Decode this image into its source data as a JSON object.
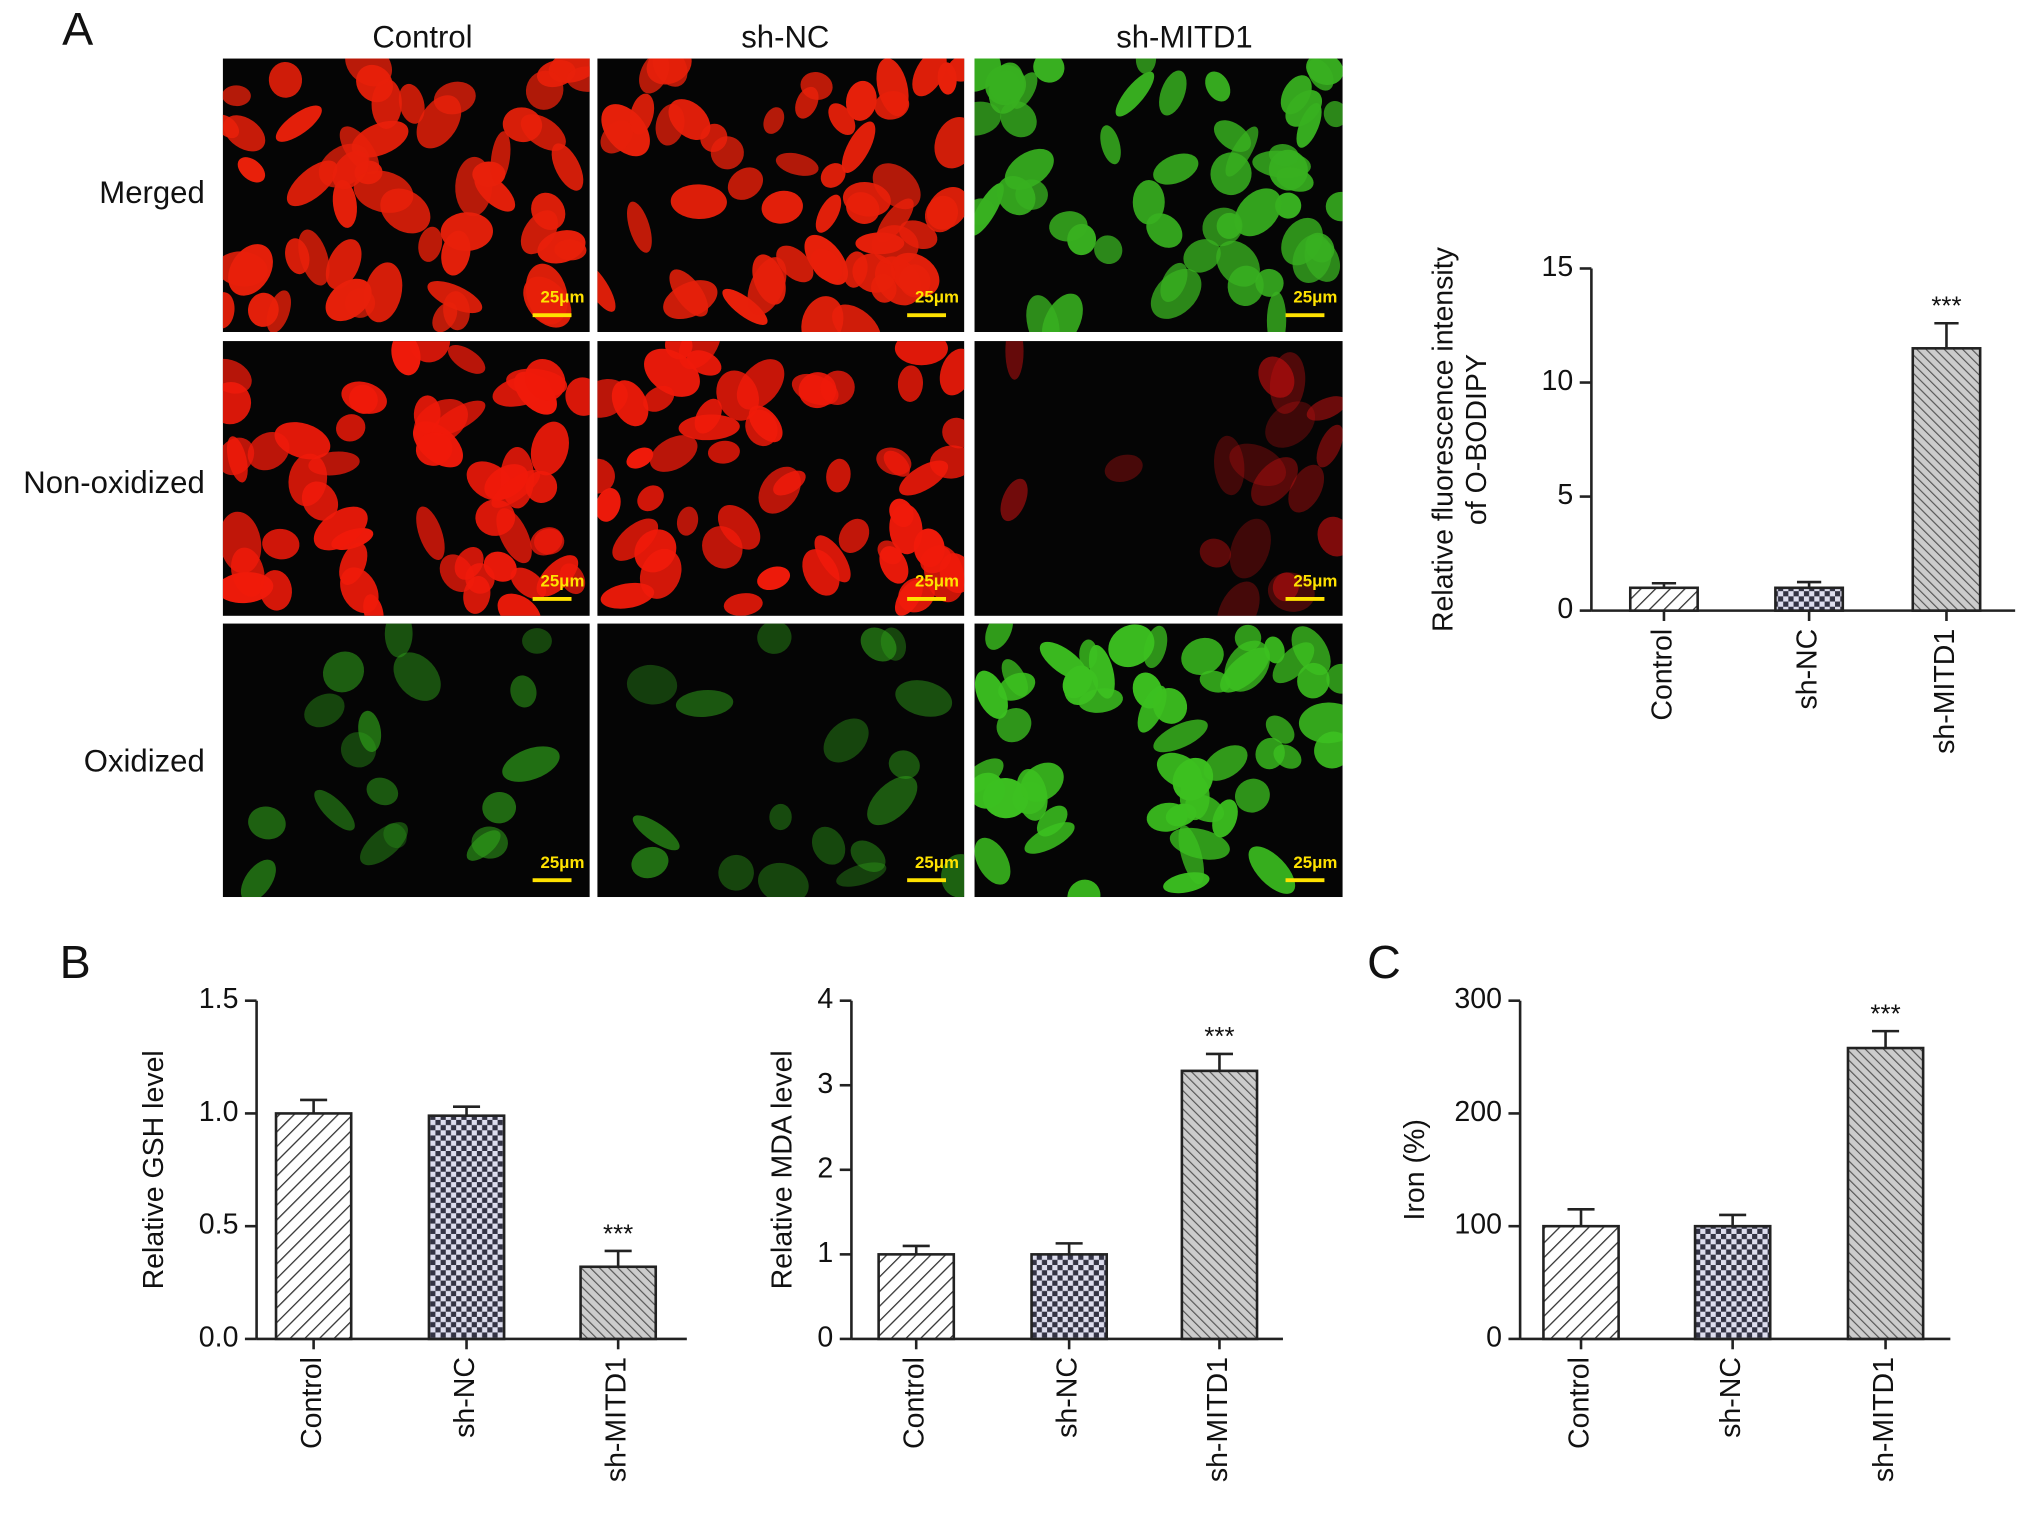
{
  "panel_labels": [
    "A",
    "B",
    "C"
  ],
  "micrograph": {
    "columns": [
      "Control",
      "sh-NC",
      "sh-MITD1"
    ],
    "rows": [
      "Merged",
      "Non-oxidized",
      "Oxidized"
    ],
    "scale_bar": "25μm"
  },
  "chart_data": [
    {
      "type": "bar",
      "ylabel": [
        "Relative fluorescence intensity",
        "of O-BODIPY"
      ],
      "categories": [
        "Control",
        "sh-NC",
        "sh-MITD1"
      ],
      "values": [
        1.0,
        1.0,
        11.5
      ],
      "errors": [
        0.2,
        0.25,
        1.1
      ],
      "patterns": [
        "backslash",
        "checker",
        "slash"
      ],
      "value_annotations": [
        null,
        null,
        "***"
      ],
      "ylim": [
        0,
        15
      ],
      "yticks": [
        0,
        5,
        10,
        15
      ]
    },
    {
      "type": "bar",
      "ylabel": [
        "Relative GSH level"
      ],
      "categories": [
        "Control",
        "sh-NC",
        "sh-MITD1"
      ],
      "values": [
        1.0,
        0.99,
        0.32
      ],
      "errors": [
        0.06,
        0.04,
        0.07
      ],
      "patterns": [
        "backslash",
        "checker",
        "slash"
      ],
      "value_annotations": [
        null,
        null,
        "***"
      ],
      "ylim": [
        0,
        1.5
      ],
      "yticks": [
        {
          "value": 0,
          "label": "0.0"
        },
        0.5,
        {
          "value": 1,
          "label": "1.0"
        },
        1.5
      ]
    },
    {
      "type": "bar",
      "ylabel": [
        "Relative MDA level"
      ],
      "categories": [
        "Control",
        "sh-NC",
        "sh-MITD1"
      ],
      "values": [
        1.0,
        1.0,
        3.17
      ],
      "errors": [
        0.1,
        0.13,
        0.2
      ],
      "patterns": [
        "backslash",
        "checker",
        "slash"
      ],
      "value_annotations": [
        null,
        null,
        "***"
      ],
      "ylim": [
        0,
        4
      ],
      "yticks": [
        0,
        1,
        2,
        3,
        4
      ]
    },
    {
      "type": "bar",
      "ylabel": [
        "Iron (%)"
      ],
      "categories": [
        "Control",
        "sh-NC",
        "sh-MITD1"
      ],
      "values": [
        100,
        100,
        258
      ],
      "errors": [
        15,
        10,
        15
      ],
      "patterns": [
        "backslash",
        "checker",
        "slash"
      ],
      "value_annotations": [
        null,
        null,
        "***"
      ],
      "ylim": [
        0,
        300
      ],
      "yticks": [
        0,
        100,
        200,
        300
      ]
    }
  ]
}
